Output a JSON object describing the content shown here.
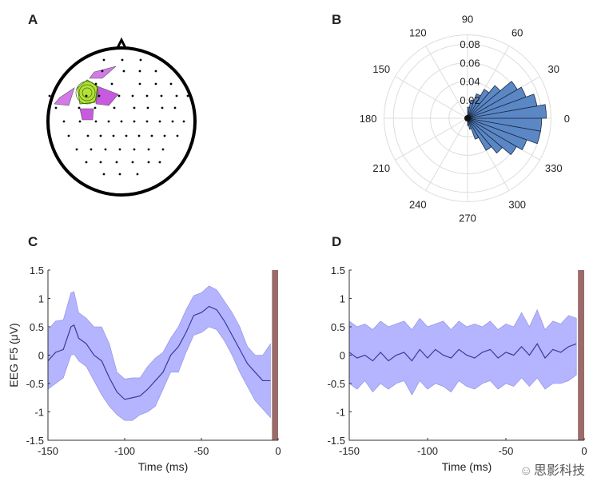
{
  "panels": {
    "a": "A",
    "b": "B",
    "c": "C",
    "d": "D"
  },
  "watermark": "思影科技",
  "chart_data": [
    {
      "panel": "A",
      "type": "topographic-map",
      "description_colors": {
        "head": "#000000",
        "electrodes": "#000000",
        "positive": "#c060e0",
        "peak": "#9acd32"
      }
    },
    {
      "panel": "B",
      "type": "polar-histogram",
      "theta_ticks": [
        "0",
        "30",
        "60",
        "90",
        "120",
        "150",
        "180",
        "210",
        "240",
        "270",
        "300",
        "330"
      ],
      "r_ticks": [
        "0.02",
        "0.04",
        "0.06",
        "0.08"
      ],
      "rlim": [
        0,
        0.09
      ],
      "bin_width_deg": 10,
      "bin_start_deg": [
        -90,
        -80,
        -70,
        -60,
        -50,
        -40,
        -30,
        -20,
        -10,
        0,
        10,
        20,
        30,
        40,
        50,
        60,
        70,
        80
      ],
      "values": [
        0.008,
        0.012,
        0.024,
        0.04,
        0.049,
        0.061,
        0.068,
        0.08,
        0.08,
        0.085,
        0.076,
        0.067,
        0.062,
        0.046,
        0.036,
        0.028,
        0.02,
        0.012
      ],
      "color": "#5b87c5"
    },
    {
      "panel": "C",
      "type": "line",
      "xlabel": "Time (ms)",
      "ylabel": "EEG F5 (μV)",
      "xlim": [
        -150,
        0
      ],
      "ylim": [
        -1.5,
        1.5
      ],
      "xticks": [
        "-150",
        "-100",
        "-50",
        "0"
      ],
      "yticks": [
        "1.5",
        "1",
        "0.5",
        "0",
        "-0.5",
        "-1",
        "-1.5"
      ],
      "x": [
        -150,
        -145,
        -140,
        -135,
        -133,
        -130,
        -125,
        -120,
        -115,
        -110,
        -105,
        -100,
        -95,
        -90,
        -85,
        -80,
        -75,
        -70,
        -65,
        -60,
        -55,
        -50,
        -45,
        -40,
        -35,
        -30,
        -25,
        -20,
        -15,
        -10,
        -5
      ],
      "mean": [
        -0.1,
        0.05,
        0.1,
        0.5,
        0.53,
        0.3,
        0.2,
        0.0,
        -0.1,
        -0.4,
        -0.65,
        -0.78,
        -0.75,
        -0.72,
        -0.6,
        -0.45,
        -0.3,
        0.0,
        0.15,
        0.4,
        0.7,
        0.75,
        0.86,
        0.8,
        0.6,
        0.35,
        0.1,
        -0.15,
        -0.3,
        -0.45,
        -0.45
      ],
      "upper": [
        0.45,
        0.6,
        0.62,
        1.1,
        1.12,
        0.75,
        0.65,
        0.5,
        0.5,
        0.2,
        -0.3,
        -0.42,
        -0.4,
        -0.4,
        -0.2,
        -0.05,
        0.05,
        0.3,
        0.5,
        0.8,
        1.05,
        1.1,
        1.22,
        1.15,
        0.95,
        0.75,
        0.5,
        0.15,
        0.0,
        0.0,
        0.2
      ],
      "lower": [
        -0.6,
        -0.5,
        -0.4,
        0.0,
        0.02,
        -0.1,
        -0.2,
        -0.45,
        -0.7,
        -0.9,
        -1.05,
        -1.15,
        -1.15,
        -1.05,
        -1.0,
        -0.9,
        -0.6,
        -0.3,
        -0.3,
        0.05,
        0.35,
        0.4,
        0.5,
        0.45,
        0.25,
        0.0,
        -0.3,
        -0.55,
        -0.8,
        -0.95,
        -1.1
      ],
      "band_color": "#b4b4ff",
      "line_color": "#3a3a99",
      "marker_color": "#9b6a6a",
      "marker_x": [
        -4,
        0
      ]
    },
    {
      "panel": "D",
      "type": "line",
      "xlabel": "Time (ms)",
      "xlim": [
        -150,
        0
      ],
      "ylim": [
        -1.5,
        1.5
      ],
      "xticks": [
        "-150",
        "-100",
        "-50",
        "0"
      ],
      "yticks": [
        "1.5",
        "1",
        "0.5",
        "0",
        "-0.5",
        "-1",
        "-1.5"
      ],
      "x": [
        -150,
        -145,
        -140,
        -135,
        -130,
        -125,
        -120,
        -115,
        -110,
        -105,
        -100,
        -95,
        -90,
        -85,
        -80,
        -75,
        -70,
        -65,
        -60,
        -55,
        -50,
        -45,
        -40,
        -35,
        -30,
        -25,
        -20,
        -15,
        -10,
        -5
      ],
      "mean": [
        0.05,
        -0.05,
        0.0,
        -0.1,
        0.05,
        -0.1,
        0.0,
        0.05,
        -0.1,
        0.1,
        -0.05,
        0.1,
        0.0,
        -0.05,
        0.1,
        0.0,
        -0.05,
        0.05,
        0.1,
        -0.05,
        0.05,
        0.0,
        0.15,
        0.0,
        0.2,
        -0.05,
        0.1,
        0.05,
        0.15,
        0.2
      ],
      "upper": [
        0.6,
        0.5,
        0.55,
        0.45,
        0.6,
        0.5,
        0.55,
        0.6,
        0.45,
        0.65,
        0.5,
        0.55,
        0.6,
        0.45,
        0.6,
        0.5,
        0.55,
        0.5,
        0.6,
        0.45,
        0.55,
        0.5,
        0.75,
        0.5,
        0.8,
        0.45,
        0.6,
        0.55,
        0.7,
        0.65
      ],
      "lower": [
        -0.5,
        -0.6,
        -0.45,
        -0.65,
        -0.5,
        -0.6,
        -0.5,
        -0.45,
        -0.7,
        -0.45,
        -0.6,
        -0.5,
        -0.55,
        -0.65,
        -0.45,
        -0.55,
        -0.6,
        -0.5,
        -0.45,
        -0.6,
        -0.5,
        -0.55,
        -0.4,
        -0.55,
        -0.4,
        -0.6,
        -0.5,
        -0.5,
        -0.45,
        -0.35
      ],
      "band_color": "#b4b4ff",
      "line_color": "#3a3a99",
      "marker_color": "#9b6a6a",
      "marker_x": [
        -4,
        0
      ]
    }
  ]
}
